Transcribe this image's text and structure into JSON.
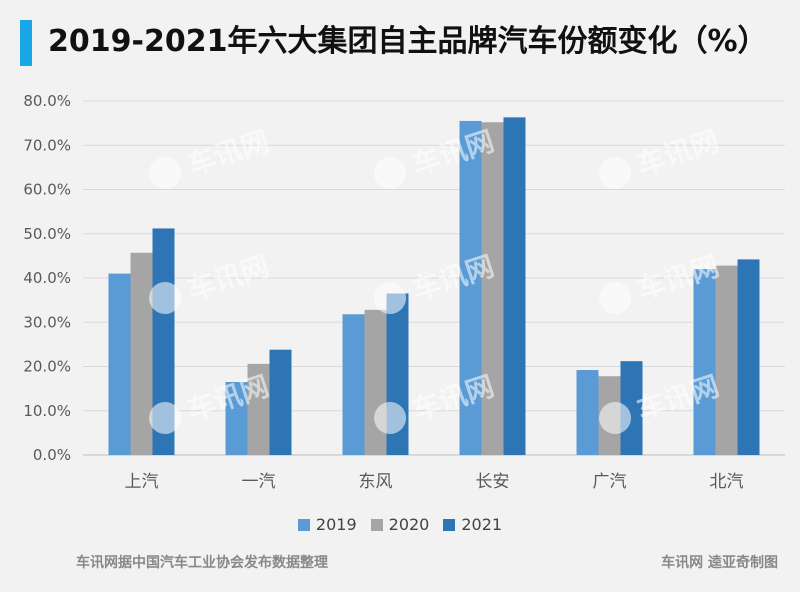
{
  "title": "2019-2021年六大集团自主品牌汽车份额变化（%）",
  "accent_color": "#1aa7e6",
  "footer": {
    "source": "车讯网据中国汽车工业协会发布数据整理",
    "credit": "车讯网 逵亚奇制图"
  },
  "watermark": "车讯网",
  "chart_data": {
    "type": "bar",
    "title": "2019-2021年六大集团自主品牌汽车份额变化（%）",
    "categories": [
      "上汽",
      "一汽",
      "东风",
      "长安",
      "广汽",
      "北汽"
    ],
    "series": [
      {
        "name": "2019",
        "color": "#5b9bd5",
        "values": [
          41.0,
          16.5,
          31.8,
          75.5,
          19.2,
          42.0
        ]
      },
      {
        "name": "2020",
        "color": "#a5a5a5",
        "values": [
          45.7,
          20.6,
          32.8,
          75.2,
          17.8,
          42.8
        ]
      },
      {
        "name": "2021",
        "color": "#2e75b6",
        "values": [
          51.2,
          23.8,
          36.5,
          76.3,
          21.2,
          44.2
        ]
      }
    ],
    "ylim": [
      0,
      80
    ],
    "yticks": [
      "0.0%",
      "10.0%",
      "20.0%",
      "30.0%",
      "40.0%",
      "50.0%",
      "60.0%",
      "70.0%",
      "80.0%"
    ],
    "grid": true,
    "legend": "bottom"
  }
}
